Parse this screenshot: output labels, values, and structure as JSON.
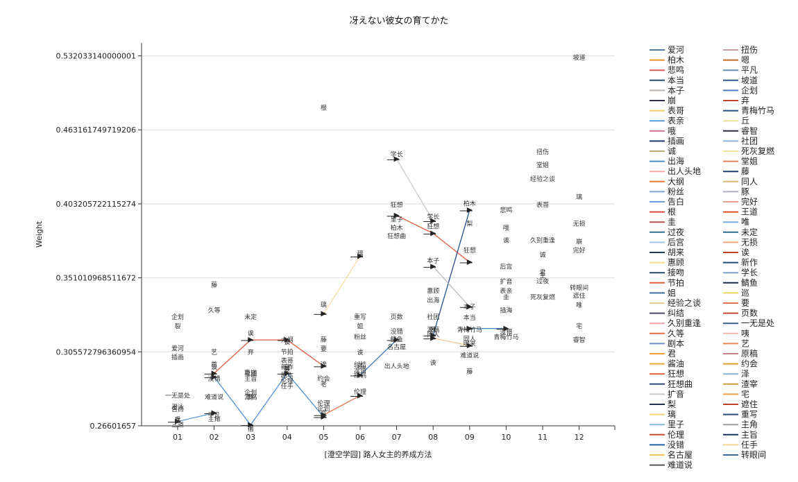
{
  "chart_data": {
    "type": "line",
    "title": "冴えない彼女の育てかた",
    "xlabel": "[澄空学园] 路人女主的养成方法",
    "ylabel": "Weight",
    "categories": [
      "01",
      "02",
      "03",
      "04",
      "05",
      "06",
      "07",
      "08",
      "09",
      "10",
      "11",
      "12"
    ],
    "y_ticks": [
      "0.26601657",
      "0.305572796360954",
      "0.351010968511672",
      "0.403205722115274",
      "0.463161749719206",
      "0.532033140000001"
    ],
    "y_tick_values": [
      0.26601657,
      0.305572796360954,
      0.351010968511672,
      0.403205722115274,
      0.463161749719206,
      0.532033140000001
    ],
    "ylim": [
      0.26601657,
      0.545
    ],
    "y_scale": "log",
    "grid": "horizontal",
    "legend_position": "right",
    "legend": [
      {
        "name": "爱河",
        "color": "#4e79a7"
      },
      {
        "name": "柏木",
        "color": "#f28e2b"
      },
      {
        "name": "悲鸣",
        "color": "#e15759"
      },
      {
        "name": "本当",
        "color": "#1f4e79"
      },
      {
        "name": "本子",
        "color": "#bab0ac"
      },
      {
        "name": "崩",
        "color": "#2b2b4a"
      },
      {
        "name": "表哥",
        "color": "#f1ce63"
      },
      {
        "name": "表亲",
        "color": "#5b9bd5"
      },
      {
        "name": "哦",
        "color": "#d37295"
      },
      {
        "name": "插画",
        "color": "#1f3a6b"
      },
      {
        "name": "诚",
        "color": "#c0a878"
      },
      {
        "name": "出海",
        "color": "#4b8bbe"
      },
      {
        "name": "出人头地",
        "color": "#f4a7a7"
      },
      {
        "name": "大纲",
        "color": "#e07b39"
      },
      {
        "name": "粉丝",
        "color": "#79a6d2"
      },
      {
        "name": "告白",
        "color": "#6f9fd8"
      },
      {
        "name": "根",
        "color": "#d94a38"
      },
      {
        "name": "圭",
        "color": "#c0504d"
      },
      {
        "name": "过夜",
        "color": "#2f6f8f"
      },
      {
        "name": "后宫",
        "color": "#a9c4e4"
      },
      {
        "name": "胡来",
        "color": "#1b3f5e"
      },
      {
        "name": "惠顾",
        "color": "#f7e08c"
      },
      {
        "name": "接吻",
        "color": "#27496d"
      },
      {
        "name": "节拍",
        "color": "#e0573a"
      },
      {
        "name": "姐",
        "color": "#3a6ea5"
      },
      {
        "name": "经验之谈",
        "color": "#e8d08a"
      },
      {
        "name": "纠结",
        "color": "#4a4a6a"
      },
      {
        "name": "久别重逢",
        "color": "#f2a3a3"
      },
      {
        "name": "久等",
        "color": "#e86a4e"
      },
      {
        "name": "剧本",
        "color": "#6c8ebf"
      },
      {
        "name": "君",
        "color": "#f0a030"
      },
      {
        "name": "酱油",
        "color": "#e8a838"
      },
      {
        "name": "狂想",
        "color": "#e06040"
      },
      {
        "name": "狂想曲",
        "color": "#2a4d7a"
      },
      {
        "name": "扩音",
        "color": "#c8c8c8"
      },
      {
        "name": "梨",
        "color": "#1f2f4f"
      },
      {
        "name": "璃",
        "color": "#f4d27a"
      },
      {
        "name": "里子",
        "color": "#7fb8e0"
      },
      {
        "name": "伦理",
        "color": "#d04a2a"
      },
      {
        "name": "没错",
        "color": "#1e5fa8"
      },
      {
        "name": "名古屋",
        "color": "#f2c55c"
      },
      {
        "name": "难道说",
        "color": "#555555"
      },
      {
        "name": "扭伤",
        "color": "#c8a0a0"
      },
      {
        "name": "嗯",
        "color": "#c86820"
      },
      {
        "name": "平凡",
        "color": "#6a8ab0"
      },
      {
        "name": "坡道",
        "color": "#2a5a8a"
      },
      {
        "name": "企划",
        "color": "#4a7fc1"
      },
      {
        "name": "弃",
        "color": "#c0442a"
      },
      {
        "name": "青梅竹马",
        "color": "#1f4e79"
      },
      {
        "name": "丘",
        "color": "#f2dc9a"
      },
      {
        "name": "睿智",
        "color": "#2a2a3a"
      },
      {
        "name": "社团",
        "color": "#8ab4d8"
      },
      {
        "name": "死灰复燃",
        "color": "#f4e4a0"
      },
      {
        "name": "堂姐",
        "color": "#e08060"
      },
      {
        "name": "藤",
        "color": "#1f3f6f"
      },
      {
        "name": "同人",
        "color": "#d8b870"
      },
      {
        "name": "豚",
        "color": "#b0b0c8"
      },
      {
        "name": "完好",
        "color": "#e8a090"
      },
      {
        "name": "王道",
        "color": "#d8501c"
      },
      {
        "name": "唯",
        "color": "#7aa8d8"
      },
      {
        "name": "未定",
        "color": "#2a6a8a"
      },
      {
        "name": "无损",
        "color": "#f0a878"
      },
      {
        "name": "诶",
        "color": "#c04020"
      },
      {
        "name": "新作",
        "color": "#1f4a7a"
      },
      {
        "name": "学长",
        "color": "#7aa0c8"
      },
      {
        "name": "鲭鱼",
        "color": "#1a2a4a"
      },
      {
        "name": "巡",
        "color": "#f0d060"
      },
      {
        "name": "要",
        "color": "#e07050"
      },
      {
        "name": "页数",
        "color": "#c04830"
      },
      {
        "name": "一无是处",
        "color": "#3a5a8a"
      },
      {
        "name": "咦",
        "color": "#f0b8a8"
      },
      {
        "name": "艺",
        "color": "#e88850"
      },
      {
        "name": "原稿",
        "color": "#c88080"
      },
      {
        "name": "约会",
        "color": "#e0a030"
      },
      {
        "name": "泽",
        "color": "#8ab0d0"
      },
      {
        "name": "渣宰",
        "color": "#c8a040"
      },
      {
        "name": "宅",
        "color": "#f0a040"
      },
      {
        "name": "遮住",
        "color": "#c04028"
      },
      {
        "name": "重写",
        "color": "#2a4a7a"
      },
      {
        "name": "主角",
        "color": "#a0a0a0"
      },
      {
        "name": "主旨",
        "color": "#1f2f5f"
      },
      {
        "name": "任手",
        "color": "#f4d890"
      },
      {
        "name": "转眼间",
        "color": "#3a6aa0"
      }
    ],
    "points": [
      {
        "word": "三道",
        "x": "01",
        "y": 0.2665
      },
      {
        "word": "丘",
        "x": "01",
        "y": 0.2693
      },
      {
        "word": "遂",
        "x": "01",
        "y": 0.2688
      },
      {
        "word": "告白",
        "x": "01",
        "y": 0.2744
      },
      {
        "word": "澄泳",
        "x": "01",
        "y": 0.2755
      },
      {
        "word": "一无是处",
        "x": "01",
        "y": 0.2815
      },
      {
        "word": "爱河",
        "x": "01",
        "y": 0.3075
      },
      {
        "word": "插画",
        "x": "01",
        "y": 0.3025
      },
      {
        "word": "企划",
        "x": "01",
        "y": 0.3262
      },
      {
        "word": "裂",
        "x": "01",
        "y": 0.3205
      },
      {
        "word": "主角",
        "x": "02",
        "y": 0.2693
      },
      {
        "word": "平凡",
        "x": "02",
        "y": 0.2715
      },
      {
        "word": "难道说",
        "x": "02",
        "y": 0.2808
      },
      {
        "word": "没错",
        "x": "02",
        "y": 0.2905
      },
      {
        "word": "诶",
        "x": "02",
        "y": 0.2968
      },
      {
        "word": "首",
        "x": "02",
        "y": 0.2985
      },
      {
        "word": "艺",
        "x": "02",
        "y": 0.3052
      },
      {
        "word": "久等",
        "x": "02",
        "y": 0.3302
      },
      {
        "word": "藤",
        "x": "02",
        "y": 0.3465
      },
      {
        "word": "宿",
        "x": "03",
        "y": 0.2645
      },
      {
        "word": "豚",
        "x": "03",
        "y": 0.2808
      },
      {
        "word": "源稿",
        "x": "03",
        "y": 0.2808
      },
      {
        "word": "企划",
        "x": "03",
        "y": 0.2832
      },
      {
        "word": "社团",
        "x": "03",
        "y": 0.2935
      },
      {
        "word": "重道",
        "x": "03",
        "y": 0.2938
      },
      {
        "word": "主旨",
        "x": "03",
        "y": 0.2905
      },
      {
        "word": "弃",
        "x": "03",
        "y": 0.3052
      },
      {
        "word": "诶",
        "x": "03",
        "y": 0.3165
      },
      {
        "word": "未定",
        "x": "03",
        "y": 0.3262
      },
      {
        "word": "宿",
        "x": "04",
        "y": 0.2968
      },
      {
        "word": "任手",
        "x": "04",
        "y": 0.2865
      },
      {
        "word": "伦理",
        "x": "04",
        "y": 0.2895
      },
      {
        "word": "剧本",
        "x": "04",
        "y": 0.2925
      },
      {
        "word": "要",
        "x": "04",
        "y": 0.2955
      },
      {
        "word": "表哥",
        "x": "04",
        "y": 0.3005
      },
      {
        "word": "节拍",
        "x": "04",
        "y": 0.3055
      },
      {
        "word": "大纲",
        "x": "04",
        "y": 0.3125
      },
      {
        "word": "新作",
        "x": "04",
        "y": 0.2968
      },
      {
        "word": "诶",
        "x": "04",
        "y": 0.3112
      },
      {
        "word": "企划",
        "x": "05",
        "y": 0.2748
      },
      {
        "word": "宫",
        "x": "05",
        "y": 0.2725
      },
      {
        "word": "伦理",
        "x": "05",
        "y": 0.2775
      },
      {
        "word": "老",
        "x": "05",
        "y": 0.2875
      },
      {
        "word": "约会",
        "x": "05",
        "y": 0.2905
      },
      {
        "word": "诶",
        "x": "05",
        "y": 0.2985
      },
      {
        "word": "要",
        "x": "05",
        "y": 0.3072
      },
      {
        "word": "藤",
        "x": "05",
        "y": 0.3128
      },
      {
        "word": "璃",
        "x": "05",
        "y": 0.3338
      },
      {
        "word": "根",
        "x": "05",
        "y": 0.4825
      },
      {
        "word": "伦理",
        "x": "06",
        "y": 0.2835
      },
      {
        "word": "摸鹤",
        "x": "06",
        "y": 0.2925
      },
      {
        "word": "没错",
        "x": "06",
        "y": 0.2955
      },
      {
        "word": "纠结",
        "x": "06",
        "y": 0.2985
      },
      {
        "word": "巡",
        "x": "06",
        "y": 0.2975
      },
      {
        "word": "诶",
        "x": "06",
        "y": 0.3052
      },
      {
        "word": "粉丝",
        "x": "06",
        "y": 0.3142
      },
      {
        "word": "姐",
        "x": "06",
        "y": 0.3205
      },
      {
        "word": "重写",
        "x": "06",
        "y": 0.3262
      },
      {
        "word": "璃",
        "x": "06",
        "y": 0.3675
      },
      {
        "word": "出人头地",
        "x": "07",
        "y": 0.2975
      },
      {
        "word": "名古屋",
        "x": "07",
        "y": 0.3082
      },
      {
        "word": "鲭鱼",
        "x": "07",
        "y": 0.3128
      },
      {
        "word": "没错",
        "x": "07",
        "y": 0.3175
      },
      {
        "word": "页数",
        "x": "07",
        "y": 0.3262
      },
      {
        "word": "狂想曲",
        "x": "07",
        "y": 0.3795
      },
      {
        "word": "柏木",
        "x": "07",
        "y": 0.3855
      },
      {
        "word": "里子",
        "x": "07",
        "y": 0.3915
      },
      {
        "word": "狂想",
        "x": "07",
        "y": 0.4025
      },
      {
        "word": "学长",
        "x": "07",
        "y": 0.4425
      },
      {
        "word": "诶",
        "x": "08",
        "y": 0.2995
      },
      {
        "word": "同人",
        "x": "08",
        "y": 0.3155
      },
      {
        "word": "源稿",
        "x": "08",
        "y": 0.3185
      },
      {
        "word": "咦",
        "x": "08",
        "y": 0.3185
      },
      {
        "word": "社团",
        "x": "08",
        "y": 0.3262
      },
      {
        "word": "出海",
        "x": "08",
        "y": 0.3365
      },
      {
        "word": "惠顾",
        "x": "08",
        "y": 0.3425
      },
      {
        "word": "本子",
        "x": "08",
        "y": 0.3625
      },
      {
        "word": "狂想",
        "x": "08",
        "y": 0.3865
      },
      {
        "word": "学长",
        "x": "08",
        "y": 0.3935
      },
      {
        "word": "藤",
        "x": "09",
        "y": 0.2945
      },
      {
        "word": "难道说",
        "x": "09",
        "y": 0.3035
      },
      {
        "word": "明来",
        "x": "09",
        "y": 0.3102
      },
      {
        "word": "同人",
        "x": "09",
        "y": 0.3132
      },
      {
        "word": "青梅竹马",
        "x": "09",
        "y": 0.3185
      },
      {
        "word": "本当",
        "x": "09",
        "y": 0.3258
      },
      {
        "word": "本子",
        "x": "09",
        "y": 0.3325
      },
      {
        "word": "狂想",
        "x": "09",
        "y": 0.3695
      },
      {
        "word": "梨",
        "x": "09",
        "y": 0.3885
      },
      {
        "word": "柏木",
        "x": "09",
        "y": 0.4035
      },
      {
        "word": "青梅竹马",
        "x": "10",
        "y": 0.3142
      },
      {
        "word": "没错",
        "x": "10",
        "y": 0.3172
      },
      {
        "word": "插海",
        "x": "10",
        "y": 0.3302
      },
      {
        "word": "圭",
        "x": "10",
        "y": 0.3385
      },
      {
        "word": "表亲",
        "x": "10",
        "y": 0.3425
      },
      {
        "word": "扩音",
        "x": "10",
        "y": 0.3485
      },
      {
        "word": "后宫",
        "x": "10",
        "y": 0.3585
      },
      {
        "word": "诶",
        "x": "10",
        "y": 0.3765
      },
      {
        "word": "哦",
        "x": "10",
        "y": 0.3855
      },
      {
        "word": "悲鸣",
        "x": "10",
        "y": 0.3985
      },
      {
        "word": "死灰复燃",
        "x": "11",
        "y": 0.3385
      },
      {
        "word": "过夜",
        "x": "11",
        "y": 0.3488
      },
      {
        "word": "主",
        "x": "11",
        "y": 0.3525
      },
      {
        "word": "君",
        "x": "11",
        "y": 0.3545
      },
      {
        "word": "诚",
        "x": "11",
        "y": 0.3665
      },
      {
        "word": "久别重逢",
        "x": "11",
        "y": 0.3765
      },
      {
        "word": "表哥",
        "x": "11",
        "y": 0.4025
      },
      {
        "word": "经验之谈",
        "x": "11",
        "y": 0.4225
      },
      {
        "word": "堂姐",
        "x": "11",
        "y": 0.4335
      },
      {
        "word": "扭伤",
        "x": "11",
        "y": 0.4445
      },
      {
        "word": "睿智",
        "x": "12",
        "y": 0.3125
      },
      {
        "word": "宅",
        "x": "12",
        "y": 0.3205
      },
      {
        "word": "唯",
        "x": "12",
        "y": 0.3335
      },
      {
        "word": "遮住",
        "x": "12",
        "y": 0.3395
      },
      {
        "word": "转眼间",
        "x": "12",
        "y": 0.3445
      },
      {
        "word": "完好",
        "x": "12",
        "y": 0.3695
      },
      {
        "word": "崩",
        "x": "12",
        "y": 0.3755
      },
      {
        "word": "无损",
        "x": "12",
        "y": 0.3885
      },
      {
        "word": "璃",
        "x": "12",
        "y": 0.4085
      },
      {
        "word": "坡道",
        "x": "12",
        "y": 0.5305
      }
    ],
    "series": [
      {
        "name": "没错",
        "color": "#4e8fd6",
        "points": [
          [
            "02",
            0.2915
          ],
          [
            "03",
            0.2665
          ],
          [
            "04",
            0.2935
          ],
          [
            "05",
            0.2705
          ]
        ]
      },
      {
        "name": "诶",
        "color": "#e0573a",
        "points": [
          [
            "02",
            0.2935
          ],
          [
            "03",
            0.3125
          ],
          [
            "04",
            0.3125
          ],
          [
            "05",
            0.2975
          ]
        ]
      },
      {
        "name": "伦理",
        "color": "#e8734d",
        "points": [
          [
            "05",
            0.2715
          ],
          [
            "06",
            0.2815
          ]
        ]
      },
      {
        "name": "没错-2",
        "color": "#3a78c8",
        "points": [
          [
            "06",
            0.2925
          ],
          [
            "07",
            0.3125
          ]
        ]
      },
      {
        "name": "狂想",
        "color": "#e05a3a",
        "points": [
          [
            "07",
            0.3945
          ],
          [
            "08",
            0.3815
          ],
          [
            "09",
            0.3615
          ]
        ]
      },
      {
        "name": "学长",
        "color": "#c8c8c8",
        "points": [
          [
            "07",
            0.4385
          ],
          [
            "08",
            0.3905
          ]
        ]
      },
      {
        "name": "柏木",
        "color": "#1f4e8f",
        "points": [
          [
            "08",
            0.3152
          ],
          [
            "09",
            0.3985
          ]
        ]
      },
      {
        "name": "青梅竹马",
        "color": "#4a8ac0",
        "points": [
          [
            "09",
            0.3192
          ],
          [
            "10",
            0.3192
          ]
        ]
      },
      {
        "name": "本子",
        "color": "#bbbbbb",
        "points": [
          [
            "08",
            0.3585
          ],
          [
            "09",
            0.3325
          ]
        ]
      },
      {
        "name": "同人",
        "color": "#f0c890",
        "points": [
          [
            "08",
            0.3135
          ],
          [
            "09",
            0.3092
          ]
        ]
      },
      {
        "name": "璃",
        "color": "#f4e0a0",
        "points": [
          [
            "05",
            0.3282
          ],
          [
            "06",
            0.3655
          ]
        ]
      },
      {
        "name": "告白",
        "color": "#5b9bd5",
        "points": [
          [
            "01",
            0.2682
          ],
          [
            "02",
            0.2725
          ]
        ]
      }
    ]
  }
}
